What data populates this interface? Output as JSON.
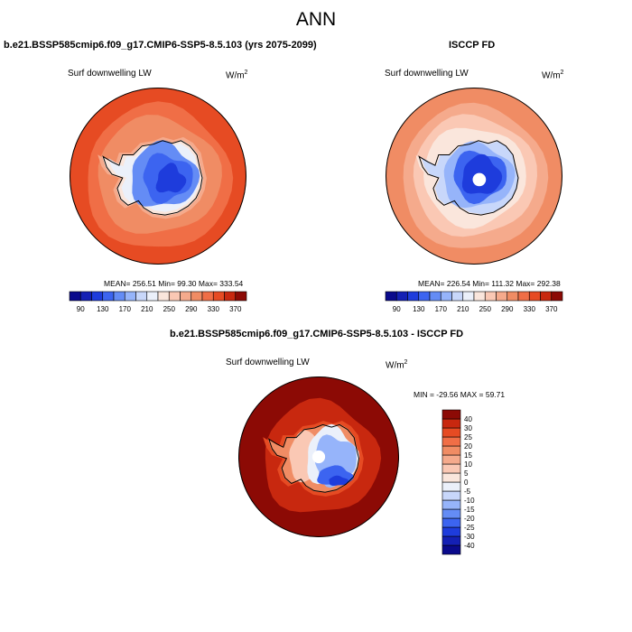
{
  "figure": {
    "title": "ANN",
    "panel1_title": "b.e21.BSSP585cmip6.f09_g17.CMIP6-SSP5-8.5.103 (yrs 2075-2099)",
    "panel2_title": "ISCCP FD",
    "panel3_title": "b.e21.BSSP585cmip6.f09_g17.CMIP6-SSP5-8.5.103 - ISCCP FD",
    "variable_label": "Surf downwelling LW",
    "units_base": "W/m",
    "units_exp": "2"
  },
  "chart_data": [
    {
      "type": "heatmap",
      "name": "model",
      "projection": "south polar stereographic",
      "title": "b.e21.BSSP585cmip6.f09_g17.CMIP6-SSP5-8.5.103 (yrs 2075-2099)",
      "variable": "Surf downwelling LW",
      "units": "W/m2",
      "stats_text": "MEAN= 256.51   Min=  99.30   Max=  333.54",
      "mean": 256.51,
      "min": 99.3,
      "max": 333.54,
      "colorbar": {
        "orientation": "horizontal",
        "levels": [
          90,
          110,
          130,
          150,
          170,
          190,
          210,
          230,
          250,
          270,
          290,
          310,
          330,
          350,
          370
        ],
        "tick_labels": [
          "90",
          "130",
          "170",
          "210",
          "250",
          "290",
          "330",
          "370"
        ],
        "colors": [
          "#0a0a8c",
          "#1420b4",
          "#1e3cdc",
          "#3c64f0",
          "#648cf5",
          "#96b4fa",
          "#c8d7fa",
          "#ebf0fa",
          "#fae6dc",
          "#fac8b4",
          "#f5aa8c",
          "#f08c64",
          "#f06e46",
          "#e64b23",
          "#c8280f",
          "#8c0a05"
        ]
      },
      "field_zones": {
        "ocean_outer": 335,
        "ocean_mid": 320,
        "sea_ice_edge": 290,
        "coast_shelf": 230,
        "east_antarctica_interior": 150,
        "plateau_min_region": 110
      }
    },
    {
      "type": "heatmap",
      "name": "observations",
      "projection": "south polar stereographic",
      "title": "ISCCP FD",
      "variable": "Surf downwelling LW",
      "units": "W/m2",
      "stats_text": "MEAN= 226.54   Min=  111.32   Max=  292.38",
      "mean": 226.54,
      "min": 111.32,
      "max": 292.38,
      "colorbar": {
        "orientation": "horizontal",
        "levels": [
          90,
          110,
          130,
          150,
          170,
          190,
          210,
          230,
          250,
          270,
          290,
          310,
          330,
          350,
          370
        ],
        "tick_labels": [
          "90",
          "130",
          "170",
          "210",
          "250",
          "290",
          "330",
          "370"
        ],
        "colors": [
          "#0a0a8c",
          "#1420b4",
          "#1e3cdc",
          "#3c64f0",
          "#648cf5",
          "#96b4fa",
          "#c8d7fa",
          "#ebf0fa",
          "#fae6dc",
          "#fac8b4",
          "#f5aa8c",
          "#f08c64",
          "#f06e46",
          "#e64b23",
          "#c8280f",
          "#8c0a05"
        ]
      },
      "field_zones": {
        "ocean_outer": 292,
        "ocean_mid": 280,
        "sea_ice_edge": 262,
        "coast_shelf": 235,
        "east_antarctica_interior": 170,
        "plateau_min_region": 115,
        "missing_pole_hole": true
      }
    },
    {
      "type": "heatmap",
      "name": "difference",
      "projection": "south polar stereographic",
      "title": "b.e21.BSSP585cmip6.f09_g17.CMIP6-SSP5-8.5.103 - ISCCP FD",
      "variable": "Surf downwelling LW",
      "units": "W/m2",
      "stats_text": "MIN = -29.56 MAX =  59.71",
      "min": -29.56,
      "max": 59.71,
      "colorbar": {
        "orientation": "vertical",
        "levels": [
          -40,
          -30,
          -25,
          -20,
          -15,
          -10,
          -5,
          0,
          5,
          10,
          15,
          20,
          25,
          30,
          40
        ],
        "tick_labels": [
          "-40",
          "-30",
          "-25",
          "-20",
          "-15",
          "-10",
          "-5",
          "0",
          "5",
          "10",
          "15",
          "20",
          "25",
          "30",
          "40"
        ],
        "colors": [
          "#0a0a8c",
          "#1420b4",
          "#1e3cdc",
          "#3c64f0",
          "#648cf5",
          "#96b4fa",
          "#c8d7fa",
          "#ebf0fa",
          "#fae6dc",
          "#fac8b4",
          "#f5aa8c",
          "#f08c64",
          "#f06e46",
          "#e64b23",
          "#c8280f",
          "#8c0a05"
        ]
      },
      "field_zones": {
        "ocean": 45,
        "sea_ice_edge": 32,
        "west_coast": 15,
        "ross_region": 5,
        "east_antarctica_interior": -15,
        "east_coast_min": -28,
        "missing_pole_hole": true
      }
    }
  ]
}
